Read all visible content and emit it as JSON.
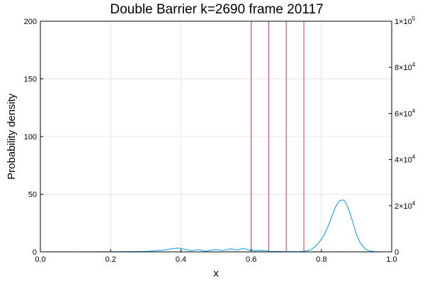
{
  "chart_data": {
    "type": "line",
    "title": "Double Barrier k=2690 frame 20117",
    "xlabel": "x",
    "ylabel": "Probability density",
    "xlim": [
      0,
      1
    ],
    "ylim": [
      0,
      200
    ],
    "y2lim": [
      0,
      100000
    ],
    "grid": true,
    "x_ticks": [
      "0.0",
      "0.2",
      "0.4",
      "0.6",
      "0.8",
      "1.0"
    ],
    "x_tick_values": [
      0,
      0.2,
      0.4,
      0.6,
      0.8,
      1.0
    ],
    "y_ticks": [
      "0",
      "50",
      "100",
      "150",
      "200"
    ],
    "y_tick_values": [
      0,
      50,
      100,
      150,
      200
    ],
    "y2_ticks": [
      {
        "value": 0,
        "label": "0",
        "exp": ""
      },
      {
        "value": 20000,
        "label": "2×10",
        "exp": "4"
      },
      {
        "value": 40000,
        "label": "4×10",
        "exp": "4"
      },
      {
        "value": 60000,
        "label": "6×10",
        "exp": "4"
      },
      {
        "value": 80000,
        "label": "8×10",
        "exp": "4"
      },
      {
        "value": 100000,
        "label": "1×10",
        "exp": "5"
      }
    ],
    "series": [
      {
        "axis": "left",
        "color": "#009AFA",
        "x": [
          0.0,
          0.1,
          0.2,
          0.25,
          0.3,
          0.33,
          0.35,
          0.37,
          0.39,
          0.4,
          0.41,
          0.43,
          0.44,
          0.45,
          0.46,
          0.47,
          0.48,
          0.49,
          0.5,
          0.51,
          0.52,
          0.53,
          0.54,
          0.55,
          0.56,
          0.57,
          0.58,
          0.59,
          0.6,
          0.605,
          0.61,
          0.615,
          0.62,
          0.625,
          0.63,
          0.635,
          0.64,
          0.645,
          0.65,
          0.66,
          0.68,
          0.7,
          0.72,
          0.74,
          0.75,
          0.76,
          0.77,
          0.78,
          0.79,
          0.8,
          0.81,
          0.82,
          0.83,
          0.84,
          0.85,
          0.86,
          0.865,
          0.87,
          0.88,
          0.89,
          0.9,
          0.91,
          0.92,
          0.93,
          0.94,
          0.95,
          0.96,
          1.0
        ],
        "y": [
          0.0,
          0.0,
          0.1,
          0.2,
          0.4,
          1.0,
          1.5,
          2.5,
          3.2,
          3.0,
          2.2,
          1.0,
          1.5,
          2.0,
          1.2,
          0.4,
          1.0,
          1.8,
          2.0,
          1.6,
          1.2,
          1.8,
          2.6,
          2.2,
          1.5,
          2.4,
          2.8,
          2.0,
          1.0,
          1.8,
          0.6,
          1.6,
          0.8,
          1.5,
          0.6,
          1.4,
          0.8,
          1.2,
          0.5,
          0.4,
          0.3,
          0.2,
          0.2,
          0.3,
          0.5,
          1.0,
          2.0,
          4.0,
          7.0,
          11.0,
          16.0,
          23.0,
          31.0,
          39.0,
          44.0,
          45.0,
          44.5,
          42.0,
          35.0,
          25.0,
          15.0,
          8.0,
          4.0,
          1.5,
          0.6,
          0.2,
          0.05,
          0.0
        ]
      },
      {
        "axis": "right",
        "color": "#E8303A",
        "x": [
          0.0,
          0.6,
          0.6,
          0.65,
          0.65,
          0.7,
          0.7,
          0.75,
          0.75,
          1.0
        ],
        "y": [
          0,
          0,
          100000,
          100000,
          0,
          0,
          100000,
          100000,
          0,
          0
        ]
      }
    ]
  }
}
